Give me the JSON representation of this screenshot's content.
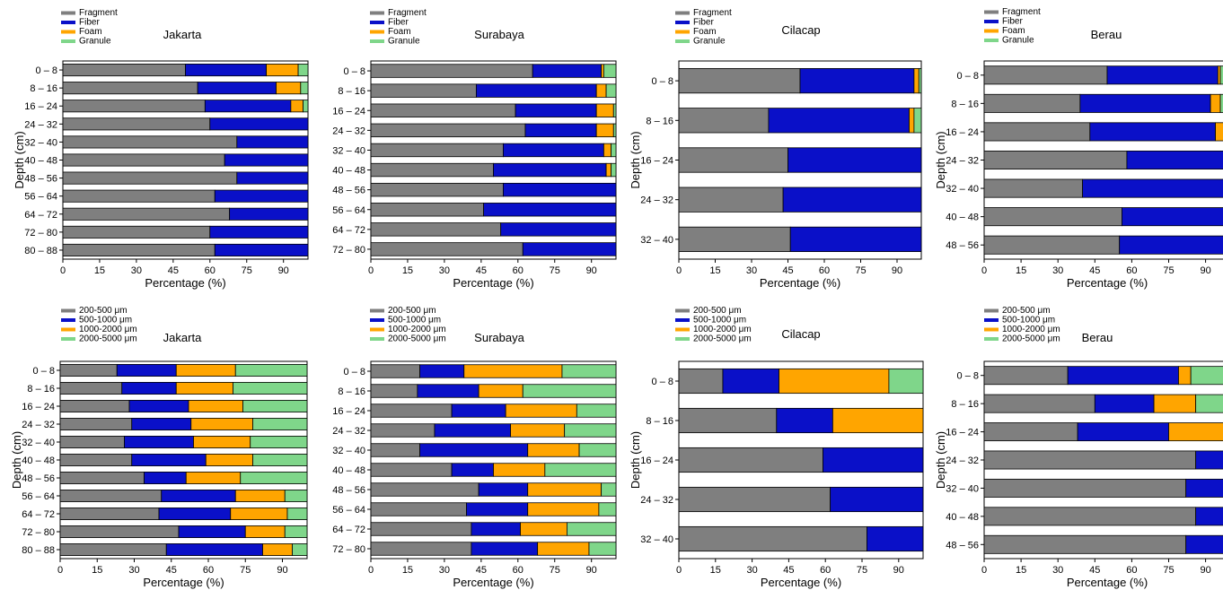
{
  "colors": {
    "fragment": "#7f7f7f",
    "fiber": "#0a10c8",
    "foam": "#ffa500",
    "granule": "#7fd68a",
    "size1": "#7f7f7f",
    "size2": "#0a10c8",
    "size3": "#ffa500",
    "size4": "#7fd68a"
  },
  "chart_data": [
    {
      "type": "bar",
      "orientation": "horizontal",
      "stacked": true,
      "title": "Jakarta",
      "xlabel": "Percentage (%)",
      "ylabel": "Depth (cm)",
      "xlim": [
        0,
        100
      ],
      "xticks": [
        0,
        15,
        30,
        45,
        60,
        75,
        90
      ],
      "legend": "top-left",
      "categories": [
        "0 – 8",
        "8 – 16",
        "16 – 24",
        "24 – 32",
        "32 – 40",
        "40 – 48",
        "48 – 56",
        "56 – 64",
        "64 – 72",
        "72 – 80",
        "80 – 88"
      ],
      "series": [
        {
          "name": "Fragment",
          "values": [
            50,
            55,
            58,
            60,
            71,
            66,
            71,
            62,
            68,
            60,
            62
          ]
        },
        {
          "name": "Fiber",
          "values": [
            33,
            32,
            35,
            40,
            29,
            34,
            29,
            38,
            32,
            40,
            38
          ]
        },
        {
          "name": "Foam",
          "values": [
            13,
            10,
            5,
            0,
            0,
            0,
            0,
            0,
            0,
            0,
            0
          ]
        },
        {
          "name": "Granule",
          "values": [
            4,
            3,
            2,
            0,
            0,
            0,
            0,
            0,
            0,
            0,
            0
          ]
        }
      ]
    },
    {
      "type": "bar",
      "orientation": "horizontal",
      "stacked": true,
      "title": "Surabaya",
      "xlabel": "Percentage (%)",
      "ylabel": "",
      "xlim": [
        0,
        100
      ],
      "xticks": [
        0,
        15,
        30,
        45,
        60,
        75,
        90
      ],
      "legend": "top-left",
      "categories": [
        "0 – 8",
        "8 – 16",
        "16 – 24",
        "24 – 32",
        "32 – 40",
        "40 – 48",
        "48 – 56",
        "56 – 64",
        "64 – 72",
        "72 – 80"
      ],
      "series": [
        {
          "name": "Fragment",
          "values": [
            66,
            43,
            59,
            63,
            54,
            50,
            54,
            46,
            53,
            62
          ]
        },
        {
          "name": "Fiber",
          "values": [
            28,
            49,
            33,
            29,
            41,
            46,
            46,
            54,
            47,
            38
          ]
        },
        {
          "name": "Foam",
          "values": [
            1,
            4,
            7,
            7,
            3,
            2,
            0,
            0,
            0,
            0
          ]
        },
        {
          "name": "Granule",
          "values": [
            5,
            4,
            1,
            1,
            2,
            2,
            0,
            0,
            0,
            0
          ]
        }
      ]
    },
    {
      "type": "bar",
      "orientation": "horizontal",
      "stacked": true,
      "title": "Cilacap",
      "xlabel": "Percentage (%)",
      "ylabel": "Depth (cm)",
      "xlim": [
        0,
        100
      ],
      "xticks": [
        0,
        15,
        30,
        45,
        60,
        75,
        90
      ],
      "legend": "top-left",
      "categories": [
        "0 – 8",
        "8 – 16",
        "16 – 24",
        "24 – 32",
        "32 – 40"
      ],
      "series": [
        {
          "name": "Fragment",
          "values": [
            50,
            37,
            45,
            43,
            46
          ]
        },
        {
          "name": "Fiber",
          "values": [
            47,
            58,
            55,
            57,
            54
          ]
        },
        {
          "name": "Foam",
          "values": [
            2,
            2,
            0,
            0,
            0
          ]
        },
        {
          "name": "Granule",
          "values": [
            1,
            3,
            0,
            0,
            0
          ]
        }
      ]
    },
    {
      "type": "bar",
      "orientation": "horizontal",
      "stacked": true,
      "title": "Berau",
      "xlabel": "Percentage (%)",
      "ylabel": "Depth (cm)",
      "xlim": [
        0,
        100
      ],
      "xticks": [
        0,
        15,
        30,
        45,
        60,
        75,
        90
      ],
      "legend": "top-left",
      "categories": [
        "0 – 8",
        "8 – 16",
        "16 – 24",
        "24 – 32",
        "32 – 40",
        "40 – 48",
        "48 – 56"
      ],
      "series": [
        {
          "name": "Fragment",
          "values": [
            50,
            39,
            43,
            58,
            40,
            56,
            55
          ]
        },
        {
          "name": "Fiber",
          "values": [
            45,
            53,
            51,
            42,
            60,
            44,
            45
          ]
        },
        {
          "name": "Foam",
          "values": [
            1,
            4,
            6,
            0,
            0,
            0,
            0
          ]
        },
        {
          "name": "Granule",
          "values": [
            4,
            4,
            0,
            0,
            0,
            0,
            0
          ]
        }
      ]
    },
    {
      "type": "bar",
      "orientation": "horizontal",
      "stacked": true,
      "title": "Jakarta",
      "xlabel": "Percentage (%)",
      "ylabel": "Depth (cm)",
      "xlim": [
        0,
        100
      ],
      "xticks": [
        0,
        15,
        30,
        45,
        60,
        75,
        90
      ],
      "legend": "top-left",
      "categories": [
        "0 – 8",
        "8 – 16",
        "16 – 24",
        "24 – 32",
        "32 – 40",
        "40 – 48",
        "48 – 56",
        "56 – 64",
        "64 – 72",
        "72 – 80",
        "80 – 88"
      ],
      "series": [
        {
          "name": "200-500 μm",
          "values": [
            23,
            25,
            28,
            29,
            26,
            29,
            34,
            41,
            40,
            48,
            43
          ]
        },
        {
          "name": "500-1000 μm",
          "values": [
            24,
            22,
            24,
            24,
            28,
            30,
            17,
            30,
            29,
            27,
            39
          ]
        },
        {
          "name": "1000-2000 μm",
          "values": [
            24,
            23,
            22,
            25,
            23,
            19,
            22,
            20,
            23,
            16,
            12
          ]
        },
        {
          "name": "2000-5000 μm",
          "values": [
            29,
            30,
            26,
            22,
            23,
            22,
            27,
            9,
            8,
            9,
            6
          ]
        }
      ]
    },
    {
      "type": "bar",
      "orientation": "horizontal",
      "stacked": true,
      "title": "Surabaya",
      "xlabel": "Percentage (%)",
      "ylabel": "",
      "xlim": [
        0,
        100
      ],
      "xticks": [
        0,
        15,
        30,
        45,
        60,
        75,
        90
      ],
      "legend": "top-left",
      "categories": [
        "0 – 8",
        "8 – 16",
        "16 – 24",
        "24 – 32",
        "32 – 40",
        "40 – 48",
        "48 – 56",
        "56 – 64",
        "64 – 72",
        "72 – 80"
      ],
      "series": [
        {
          "name": "200-500 μm",
          "values": [
            20,
            19,
            33,
            26,
            20,
            33,
            44,
            39,
            41,
            41
          ]
        },
        {
          "name": "500-1000 μm",
          "values": [
            18,
            25,
            22,
            31,
            44,
            17,
            20,
            25,
            20,
            27
          ]
        },
        {
          "name": "1000-2000 μm",
          "values": [
            40,
            18,
            29,
            22,
            21,
            21,
            30,
            29,
            19,
            21
          ]
        },
        {
          "name": "2000-5000 μm",
          "values": [
            22,
            38,
            16,
            21,
            15,
            29,
            6,
            7,
            20,
            11
          ]
        }
      ]
    },
    {
      "type": "bar",
      "orientation": "horizontal",
      "stacked": true,
      "title": "Cilacap",
      "xlabel": "Percentage (%)",
      "ylabel": "Depth (cm)",
      "xlim": [
        0,
        100
      ],
      "xticks": [
        0,
        15,
        30,
        45,
        60,
        75,
        90
      ],
      "legend": "top-left",
      "categories": [
        "0 – 8",
        "8 – 16",
        "16 – 24",
        "24 – 32",
        "32 – 40"
      ],
      "series": [
        {
          "name": "200-500 μm",
          "values": [
            18,
            40,
            59,
            62,
            77
          ]
        },
        {
          "name": "500-1000 μm",
          "values": [
            23,
            23,
            41,
            38,
            23
          ]
        },
        {
          "name": "1000-2000 μm",
          "values": [
            45,
            37,
            0,
            0,
            0
          ]
        },
        {
          "name": "2000-5000 μm",
          "values": [
            14,
            0,
            0,
            0,
            0
          ]
        }
      ]
    },
    {
      "type": "bar",
      "orientation": "horizontal",
      "stacked": true,
      "title": "Berau",
      "xlabel": "Percentage (%)",
      "ylabel": "Depth (cm)",
      "xlim": [
        0,
        100
      ],
      "xticks": [
        0,
        15,
        30,
        45,
        60,
        75,
        90
      ],
      "legend": "top-left",
      "categories": [
        "0 – 8",
        "8 – 16",
        "16 – 24",
        "24 – 32",
        "32 – 40",
        "40 – 48",
        "48 – 56"
      ],
      "series": [
        {
          "name": "200-500 μm",
          "values": [
            34,
            45,
            38,
            86,
            82,
            86,
            82
          ]
        },
        {
          "name": "500-1000 μm",
          "values": [
            45,
            24,
            37,
            14,
            18,
            14,
            18
          ]
        },
        {
          "name": "1000-2000 μm",
          "values": [
            5,
            17,
            25,
            0,
            0,
            0,
            0
          ]
        },
        {
          "name": "2000-5000 μm",
          "values": [
            16,
            14,
            0,
            0,
            0,
            0,
            0
          ]
        }
      ]
    }
  ]
}
